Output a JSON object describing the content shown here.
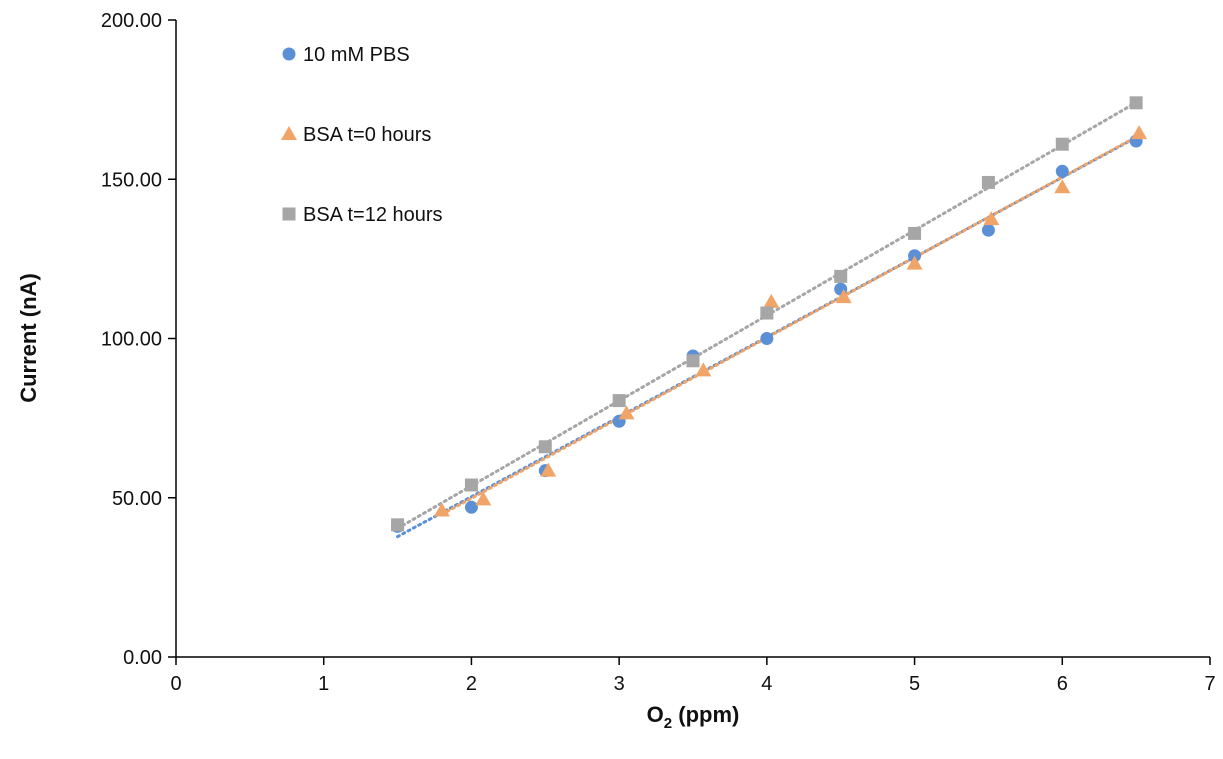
{
  "chart_data": {
    "type": "scatter",
    "title": "",
    "xlabel_main": "O",
    "xlabel_sub": "2",
    "xlabel_rest": " (ppm)",
    "ylabel": "Current (nA)",
    "xlim": [
      0,
      7
    ],
    "ylim": [
      0,
      200
    ],
    "x_ticks": [
      0,
      1,
      2,
      3,
      4,
      5,
      6,
      7
    ],
    "y_ticks": [
      0,
      50,
      100,
      150,
      200
    ],
    "y_tick_labels": [
      "0.00",
      "50.00",
      "100.00",
      "150.00",
      "200.00"
    ],
    "grid": false,
    "legend_position": "top-left",
    "series": [
      {
        "name": "10 mM PBS",
        "marker": "circle",
        "color": "#5B8FD6",
        "trendline": true,
        "x": [
          1.5,
          2.0,
          2.5,
          3.0,
          3.5,
          4.0,
          4.5,
          5.0,
          5.5,
          6.0,
          6.5
        ],
        "y": [
          41,
          47,
          58.5,
          74,
          94.5,
          100,
          115.5,
          126,
          134,
          152.5,
          162
        ]
      },
      {
        "name": "BSA t=0 hours",
        "marker": "triangle",
        "color": "#F0A468",
        "trendline": true,
        "x": [
          1.8,
          2.08,
          2.52,
          3.05,
          3.57,
          4.03,
          4.52,
          5.0,
          5.52,
          6.0,
          6.52
        ],
        "y": [
          46,
          49.5,
          58.5,
          76.5,
          90,
          111.5,
          113,
          123.5,
          137.5,
          147.5,
          164.5
        ]
      },
      {
        "name": "BSA t=12 hours",
        "marker": "square",
        "color": "#A6A6A6",
        "trendline": true,
        "x": [
          1.5,
          2.0,
          2.5,
          3.0,
          3.5,
          4.0,
          4.5,
          5.0,
          5.5,
          6.0,
          6.5
        ],
        "y": [
          41.5,
          54,
          66,
          80.5,
          93,
          108,
          119.5,
          133,
          149,
          161,
          174
        ]
      }
    ]
  }
}
